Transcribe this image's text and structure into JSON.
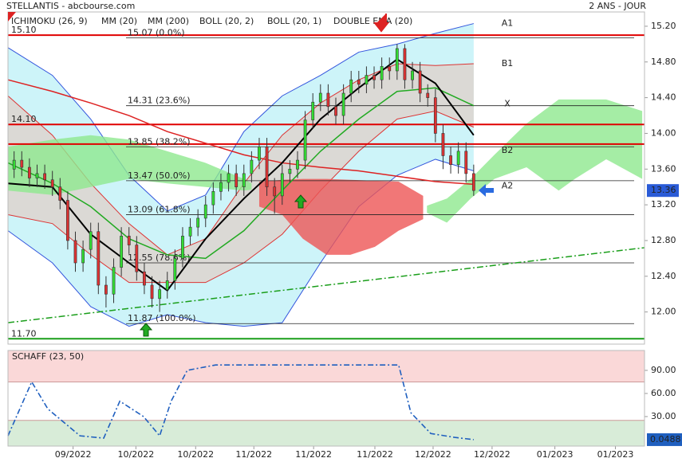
{
  "chart_data": [
    {
      "type": "candlestick",
      "title": "STELLANTIS - abcbourse.com",
      "subtitle": "2 ANS - JOUR",
      "xlim": [
        -0.8,
        82.3
      ],
      "xticks": [
        {
          "value": 7.7,
          "label": "09/2022"
        },
        {
          "value": 15.9,
          "label": "10/2022"
        },
        {
          "value": 23.7,
          "label": "10/2022"
        },
        {
          "value": 31.3,
          "label": "11/2022"
        },
        {
          "value": 39.1,
          "label": "11/2022"
        },
        {
          "value": 47.1,
          "label": "11/2022"
        },
        {
          "value": 54.7,
          "label": "12/2022"
        },
        {
          "value": 62.4,
          "label": "12/2022"
        },
        {
          "value": 70.6,
          "label": "01/2023"
        },
        {
          "value": 78.5,
          "label": "01/2023"
        }
      ],
      "ylim": [
        11.64,
        15.36
      ],
      "yticks": [
        {
          "value": 15.2,
          "label": "15.20"
        },
        {
          "value": 14.8,
          "label": "14.80"
        },
        {
          "value": 14.4,
          "label": "14.40"
        },
        {
          "value": 14,
          "label": "14.00"
        },
        {
          "value": 13.6,
          "label": "13.60"
        },
        {
          "value": 13.2,
          "label": "13.20"
        },
        {
          "value": 12.8,
          "label": "12.80"
        },
        {
          "value": 12.4,
          "label": "12.40"
        },
        {
          "value": 12,
          "label": "12.00"
        }
      ],
      "last_value": 13.36,
      "last_color": "#2a5bd7",
      "up_color": "#33dd33",
      "down_color": "#dd3333",
      "open": [
        13.6,
        13.7,
        13.62,
        13.5,
        13.55,
        13.48,
        13.4,
        13.25,
        12.8,
        12.55,
        12.7,
        12.9,
        12.3,
        12.2,
        12.5,
        12.85,
        12.75,
        12.45,
        12.3,
        12.15,
        12.25,
        12.35,
        12.6,
        12.85,
        12.95,
        13.05,
        13.2,
        13.35,
        13.45,
        13.55,
        13.4,
        13.55,
        13.7,
        13.85,
        13.4,
        13.3,
        13.55,
        13.6,
        13.7,
        14.15,
        14.35,
        14.45,
        14.3,
        14.2,
        14.45,
        14.6,
        14.55,
        14.65,
        14.6,
        14.75,
        14.7,
        14.95,
        14.6,
        14.7,
        14.45,
        14.4,
        14.0,
        13.75,
        13.65,
        13.8,
        13.55
      ],
      "high": [
        13.8,
        13.8,
        13.72,
        13.65,
        13.65,
        13.58,
        13.5,
        13.35,
        12.9,
        12.8,
        13.0,
        13.0,
        12.4,
        12.6,
        12.95,
        12.95,
        12.85,
        12.55,
        12.4,
        12.35,
        12.45,
        12.7,
        12.95,
        13.05,
        13.15,
        13.3,
        13.45,
        13.55,
        13.65,
        13.65,
        13.65,
        13.8,
        13.95,
        13.95,
        13.5,
        13.65,
        13.7,
        13.8,
        14.25,
        14.45,
        14.55,
        14.55,
        14.4,
        14.55,
        14.7,
        14.7,
        14.75,
        14.75,
        14.85,
        14.85,
        15.0,
        15.0,
        14.8,
        14.8,
        14.55,
        14.5,
        14.1,
        13.85,
        13.9,
        13.9,
        13.65
      ],
      "low": [
        13.5,
        13.52,
        13.4,
        13.4,
        13.38,
        13.3,
        13.15,
        12.7,
        12.45,
        12.45,
        12.6,
        12.2,
        12.05,
        12.1,
        12.4,
        12.65,
        12.35,
        12.2,
        12.05,
        12.0,
        12.15,
        12.25,
        12.5,
        12.75,
        12.85,
        12.95,
        13.1,
        13.25,
        13.35,
        13.3,
        13.3,
        13.45,
        13.6,
        13.3,
        13.1,
        13.2,
        13.45,
        13.5,
        13.6,
        14.05,
        14.25,
        14.2,
        14.1,
        14.1,
        14.35,
        14.45,
        14.45,
        14.5,
        14.5,
        14.6,
        14.6,
        14.5,
        14.5,
        14.35,
        14.3,
        13.9,
        13.6,
        13.55,
        13.55,
        13.45,
        13.3
      ],
      "close": [
        13.7,
        13.62,
        13.5,
        13.55,
        13.48,
        13.4,
        13.25,
        12.8,
        12.55,
        12.7,
        12.9,
        12.3,
        12.2,
        12.5,
        12.85,
        12.75,
        12.45,
        12.3,
        12.15,
        12.25,
        12.35,
        12.6,
        12.85,
        12.95,
        13.05,
        13.2,
        13.35,
        13.45,
        13.55,
        13.4,
        13.55,
        13.7,
        13.85,
        13.4,
        13.3,
        13.55,
        13.6,
        13.7,
        14.15,
        14.35,
        14.45,
        14.3,
        14.2,
        14.45,
        14.6,
        14.55,
        14.65,
        14.6,
        14.75,
        14.7,
        14.95,
        14.6,
        14.7,
        14.45,
        14.4,
        14.0,
        13.75,
        13.65,
        13.8,
        13.55,
        13.36
      ],
      "clouds": {
        "name": "ICHIMOKU (26, 9)",
        "areas": [
          {
            "color": "#8fe88f",
            "x": [
              -0.8,
              5,
              10,
              15,
              20,
              25,
              30,
              31
            ],
            "upper": [
              13.85,
              13.93,
              13.98,
              13.93,
              13.8,
              13.67,
              13.49,
              13.44
            ],
            "lower": [
              13.36,
              13.31,
              13.4,
              13.49,
              13.44,
              13.4,
              13.36,
              13.37
            ]
          },
          {
            "color": "#ee5555",
            "x": [
              32,
              35,
              37.7,
              40.8,
              43.9,
              47.1,
              50.2,
              53.4
            ],
            "upper": [
              13.46,
              13.48,
              13.49,
              13.49,
              13.48,
              13.47,
              13.46,
              13.3
            ],
            "lower": [
              13.18,
              13.09,
              12.82,
              12.64,
              12.64,
              12.73,
              12.91,
              13.04
            ]
          },
          {
            "color": "#8fe88f",
            "x": [
              53.9,
              56.5,
              59.6,
              62.7,
              66.9,
              71.1,
              73.2,
              77.3,
              82.0
            ],
            "upper": [
              13.19,
              13.27,
              13.49,
              13.76,
              14.11,
              14.38,
              14.38,
              14.38,
              14.25
            ],
            "lower": [
              13.11,
              13.0,
              13.27,
              13.49,
              13.62,
              13.36,
              13.49,
              13.71,
              13.49
            ]
          }
        ]
      },
      "bands": [
        {
          "name": "BOLL (20, 2)",
          "color": "#3355dd",
          "fill": "#c8f3f8",
          "x": [
            -0.8,
            5,
            10,
            15,
            20,
            25,
            30,
            35,
            40,
            45,
            50,
            55,
            60
          ],
          "upper": [
            14.96,
            14.65,
            14.16,
            13.53,
            13.13,
            13.31,
            14.02,
            14.42,
            14.65,
            14.91,
            15.0,
            15.12,
            15.23
          ],
          "lower": [
            12.91,
            12.55,
            12.06,
            11.84,
            11.97,
            11.88,
            11.84,
            11.88,
            12.55,
            13.18,
            13.53,
            13.71,
            13.58
          ]
        },
        {
          "name": "BOLL (20, 1)",
          "color": "#dd3333",
          "fill": "#ddd6d0",
          "x": [
            -0.8,
            5,
            10,
            15,
            20,
            25,
            30,
            35,
            40,
            45,
            50,
            55,
            60
          ],
          "upper": [
            14.42,
            13.98,
            13.44,
            12.99,
            12.64,
            12.82,
            13.44,
            13.98,
            14.34,
            14.6,
            14.78,
            14.76,
            14.78
          ],
          "lower": [
            13.09,
            12.99,
            12.64,
            12.33,
            12.33,
            12.33,
            12.55,
            12.87,
            13.36,
            13.8,
            14.16,
            14.25,
            14.07
          ]
        }
      ],
      "series": [
        {
          "name": "MM (20)",
          "color": "#22aa22",
          "x": [
            -0.8,
            5,
            10,
            15,
            20,
            25,
            30,
            35,
            40,
            45,
            50,
            55,
            60
          ],
          "values": [
            13.67,
            13.44,
            13.18,
            12.82,
            12.64,
            12.6,
            12.91,
            13.36,
            13.8,
            14.16,
            14.47,
            14.51,
            14.31
          ]
        },
        {
          "name": "MM (200)",
          "color": "#dd2222",
          "x": [
            -0.8,
            5,
            10,
            15,
            20,
            25,
            30,
            35,
            40,
            45,
            50,
            55,
            60
          ],
          "values": [
            14.6,
            14.47,
            14.34,
            14.2,
            14.02,
            13.89,
            13.76,
            13.67,
            13.62,
            13.58,
            13.52,
            13.46,
            13.43
          ]
        },
        {
          "name": "DOUBLE EMA (20)",
          "color": "#000000",
          "x": [
            -0.8,
            5,
            10,
            15,
            20,
            25,
            30,
            35,
            40,
            45,
            50,
            55,
            60
          ],
          "values": [
            13.44,
            13.4,
            12.87,
            12.55,
            12.24,
            12.82,
            13.27,
            13.67,
            14.16,
            14.51,
            14.83,
            14.56,
            13.98
          ]
        }
      ],
      "trendline": {
        "color": "#1a9e1a",
        "x": [
          -0.8,
          82.3
        ],
        "values": [
          11.88,
          12.72
        ]
      },
      "lines": [
        {
          "value": 15.1,
          "label": "15.10",
          "color": "#e00000"
        },
        {
          "value": 14.1,
          "label": "14.10",
          "color": "#e00000"
        },
        {
          "value": 13.88,
          "color": "#e00000"
        },
        {
          "value": 11.7,
          "label": "11.70",
          "color": "#1a9e1a"
        }
      ],
      "levels": [
        {
          "value": 15.07,
          "label": "15.07 (0.0%)"
        },
        {
          "value": 14.31,
          "label": "14.31 (23.6%)"
        },
        {
          "value": 13.85,
          "label": "13.85 (38.2%)"
        },
        {
          "value": 13.47,
          "label": "13.47 (50.0%)"
        },
        {
          "value": 13.09,
          "label": "13.09 (61.8%)"
        },
        {
          "value": 12.55,
          "label": "12.55 (78.6%)"
        },
        {
          "value": 11.87,
          "label": "11.87 (100.0%)"
        }
      ],
      "annotations": [
        {
          "text": "A1",
          "value": 15.23,
          "color": "#2233cc"
        },
        {
          "text": "B1",
          "value": 14.78,
          "color": "#cc2222"
        },
        {
          "text": "X",
          "value": 14.33,
          "color": "#22aa22"
        },
        {
          "text": "B2",
          "value": 13.81,
          "color": "#cc2222"
        },
        {
          "text": "A2",
          "value": 13.41,
          "color": "#2233cc"
        }
      ]
    },
    {
      "type": "line",
      "title": "SCHAFF (23, 50)",
      "color": "#1f5fbf",
      "xlim": [
        -0.8,
        82.3
      ],
      "ylim": [
        -8.3,
        115.8
      ],
      "yticks": [
        {
          "value": 90,
          "label": "90.00"
        },
        {
          "value": 60,
          "label": "60.00"
        },
        {
          "value": 30,
          "label": "30.00"
        }
      ],
      "zones": [
        {
          "from": 75,
          "to": 115.8,
          "color": "#fad8d8"
        },
        {
          "from": -8.3,
          "to": 25,
          "color": "#d8ecd8"
        }
      ],
      "x": [
        -0.8,
        2.3,
        4.4,
        8.6,
        11.7,
        13.8,
        16.9,
        19.0,
        20.5,
        22.6,
        26.3,
        50.2,
        51.8,
        54.4,
        57.5,
        60
      ],
      "values": [
        5,
        75,
        40,
        5,
        2,
        50,
        30,
        5,
        50,
        90,
        97,
        97,
        35,
        8,
        3,
        0.0488
      ]
    }
  ]
}
